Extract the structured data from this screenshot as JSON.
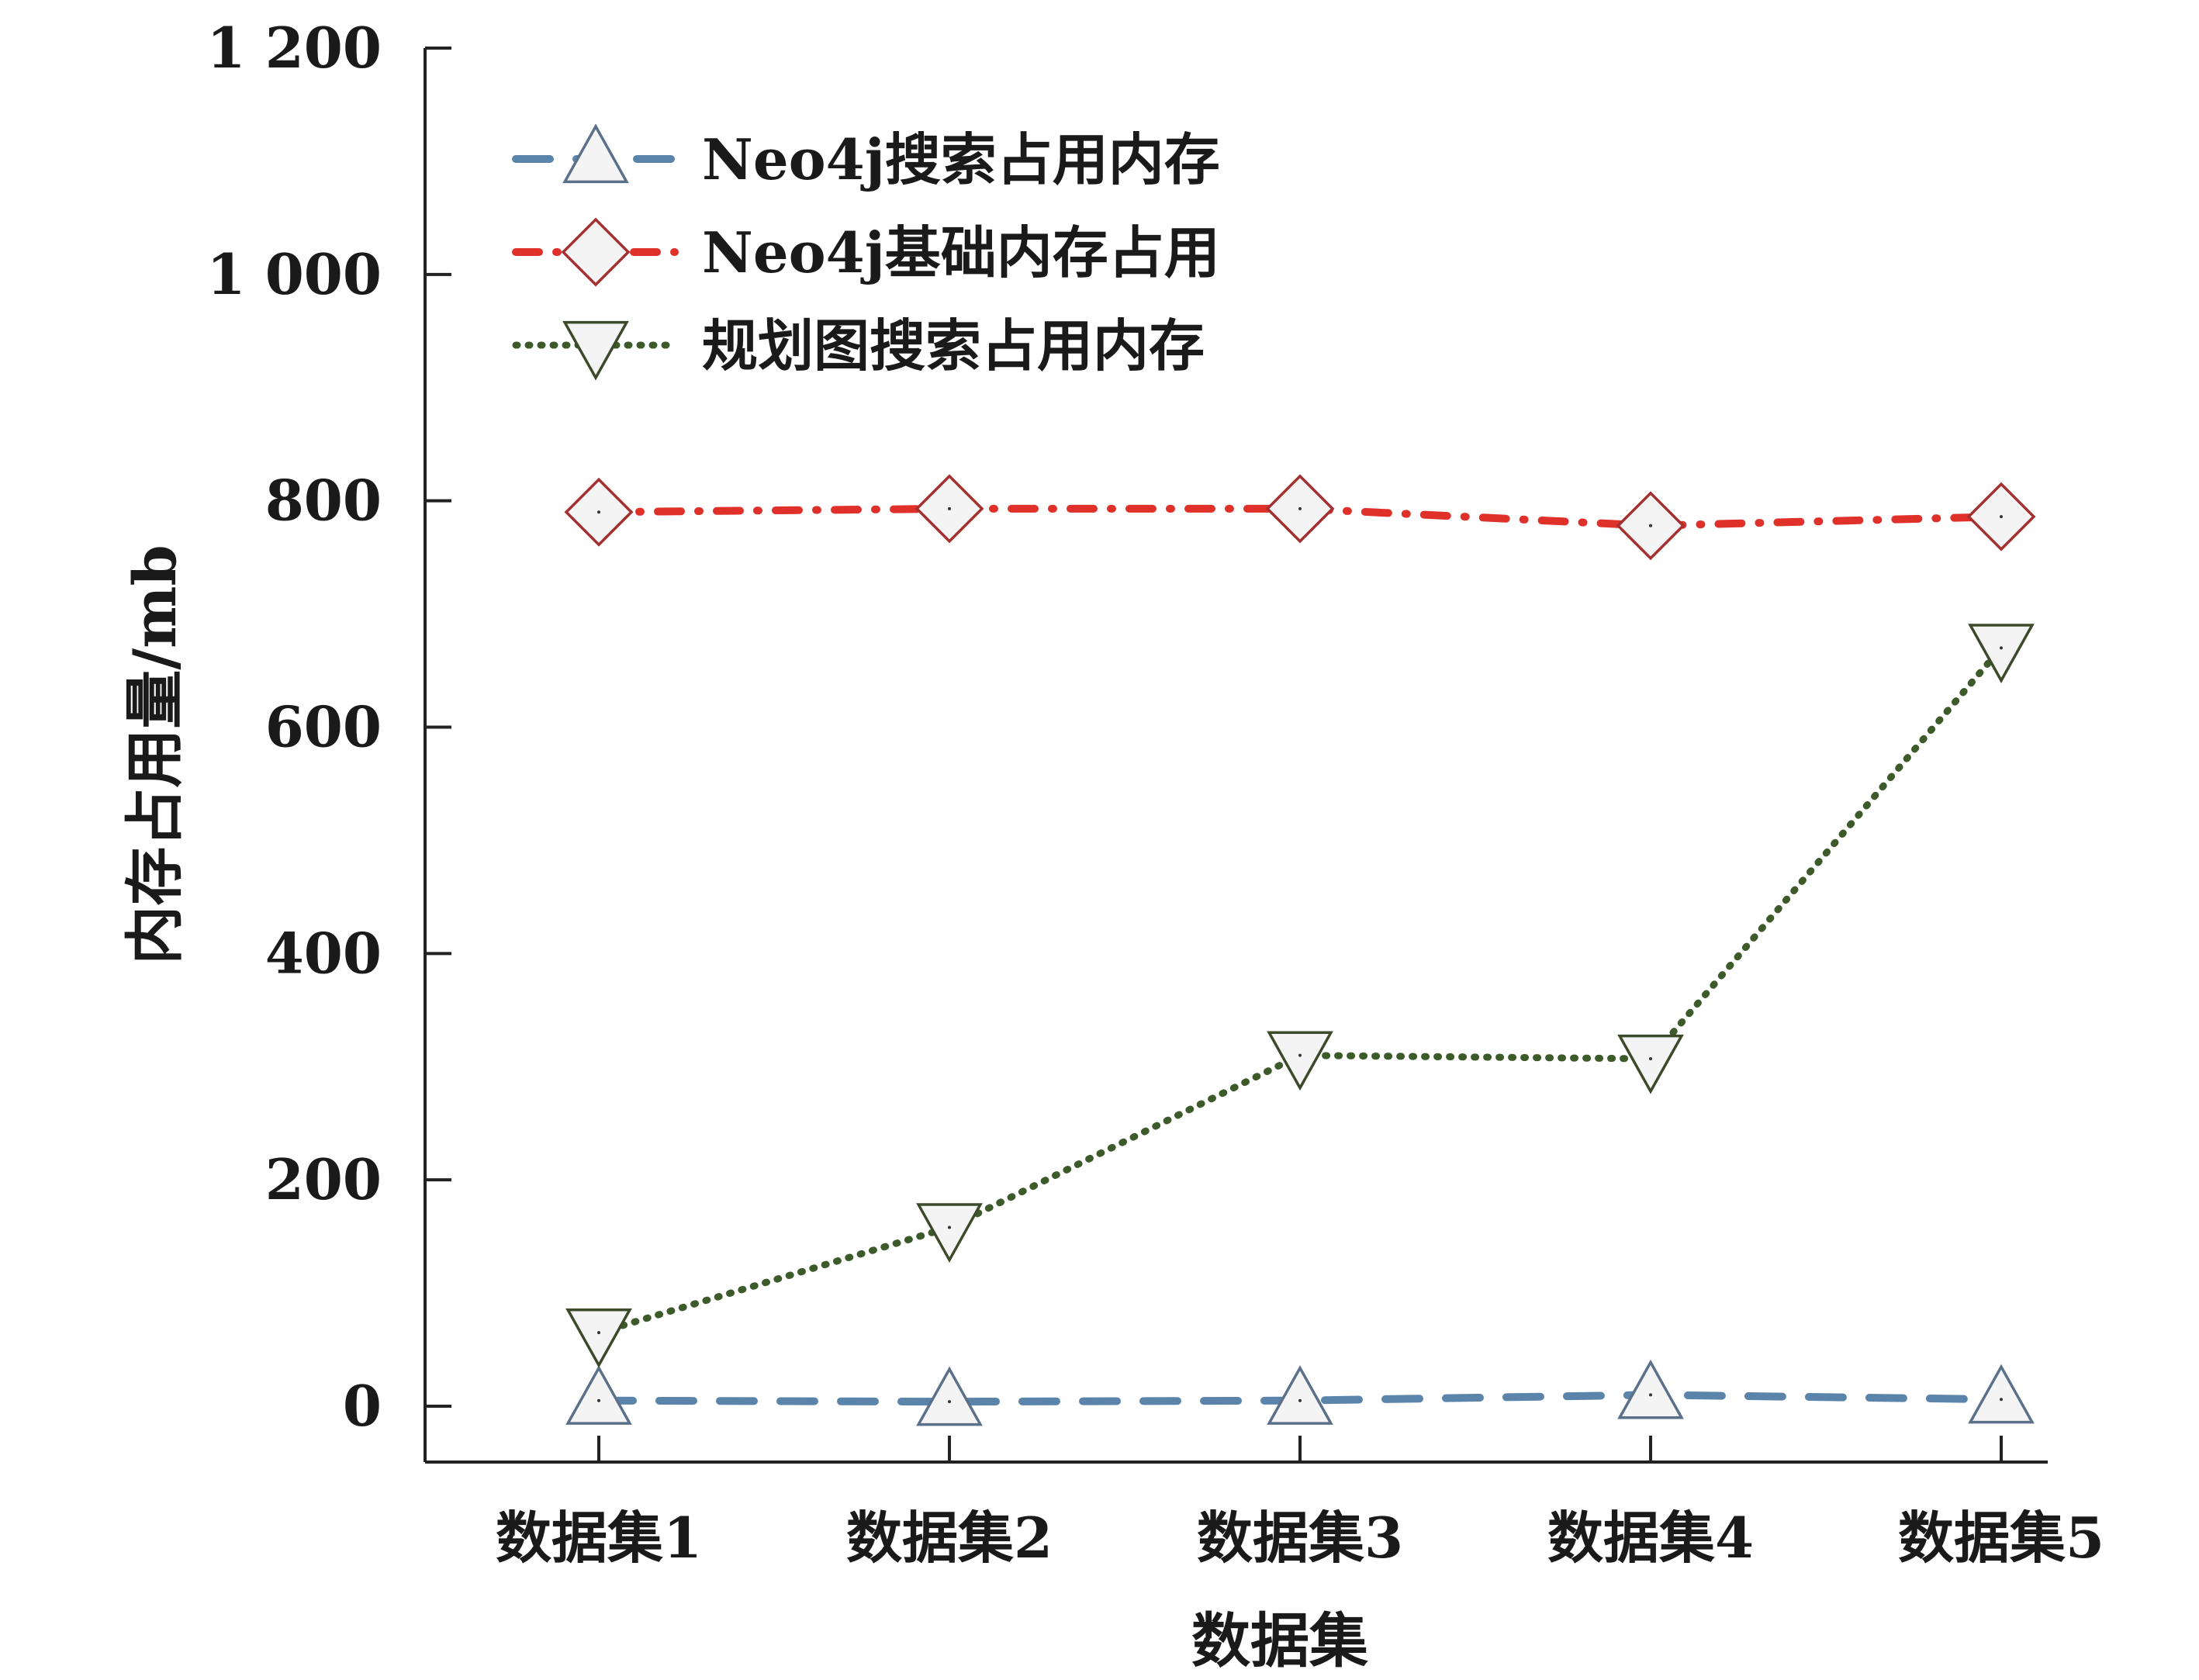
{
  "chart_data": {
    "type": "line",
    "title": "",
    "xlabel": "数据集",
    "ylabel": "内存占用量/mb",
    "categories": [
      "数据集1",
      "数据集2",
      "数据集3",
      "数据集4",
      "数据集5"
    ],
    "ylim": [
      0,
      1200
    ],
    "yticks": [
      0,
      200,
      400,
      600,
      800,
      1000,
      1200
    ],
    "ytick_labels": [
      "0",
      "200",
      "400",
      "600",
      "800",
      "1 000",
      "1 200"
    ],
    "grid": false,
    "legend_position": "top-left",
    "series": [
      {
        "name": "Neo4j搜索占用内存",
        "values": [
          5,
          4,
          5,
          10,
          6
        ],
        "color": "#5b84aa",
        "marker": "triangle-up",
        "line_style": "dashed"
      },
      {
        "name": "Neo4j基础内存占用",
        "values": [
          790,
          793,
          793,
          778,
          786
        ],
        "color": "#e0302a",
        "marker": "diamond",
        "line_style": "dash-dot"
      },
      {
        "name": "规划图搜索占用内存",
        "values": [
          65,
          158,
          310,
          307,
          670
        ],
        "color": "#3d5a2a",
        "marker": "triangle-down",
        "line_style": "dotted"
      }
    ]
  }
}
